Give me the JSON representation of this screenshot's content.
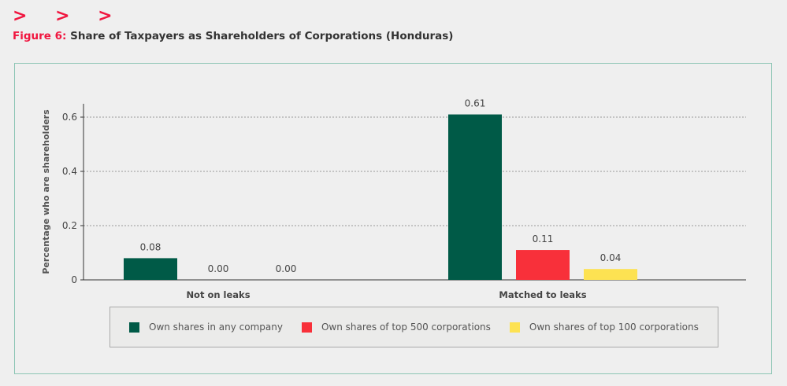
{
  "header": {
    "chevrons": "> > >",
    "figure_label": "Figure 6:",
    "title": "Share of Taxpayers as Shareholders of Corporations (Honduras)"
  },
  "chart_data": {
    "type": "bar",
    "title": "Share of Taxpayers as Shareholders of Corporations (Honduras)",
    "xlabel": "",
    "ylabel": "Percentage who are shareholders",
    "ylim": [
      0,
      0.65
    ],
    "yticks": [
      "0",
      "0.2",
      "0.4",
      "0.6"
    ],
    "grid": true,
    "legend_position": "bottom",
    "categories": [
      "Not on leaks",
      "Matched to leaks"
    ],
    "series": [
      {
        "name": "Own shares in any company",
        "color": "#005a47",
        "values": [
          0.08,
          0.61
        ],
        "labels": [
          "0.08",
          "0.61"
        ]
      },
      {
        "name": "Own shares of top 500 corporations",
        "color": "#f8303a",
        "values": [
          0.0,
          0.11
        ],
        "labels": [
          "0.00",
          "0.11"
        ]
      },
      {
        "name": "Own shares of top 100 corporations",
        "color": "#fde252",
        "values": [
          0.0,
          0.04
        ],
        "labels": [
          "0.00",
          "0.04"
        ]
      }
    ]
  }
}
